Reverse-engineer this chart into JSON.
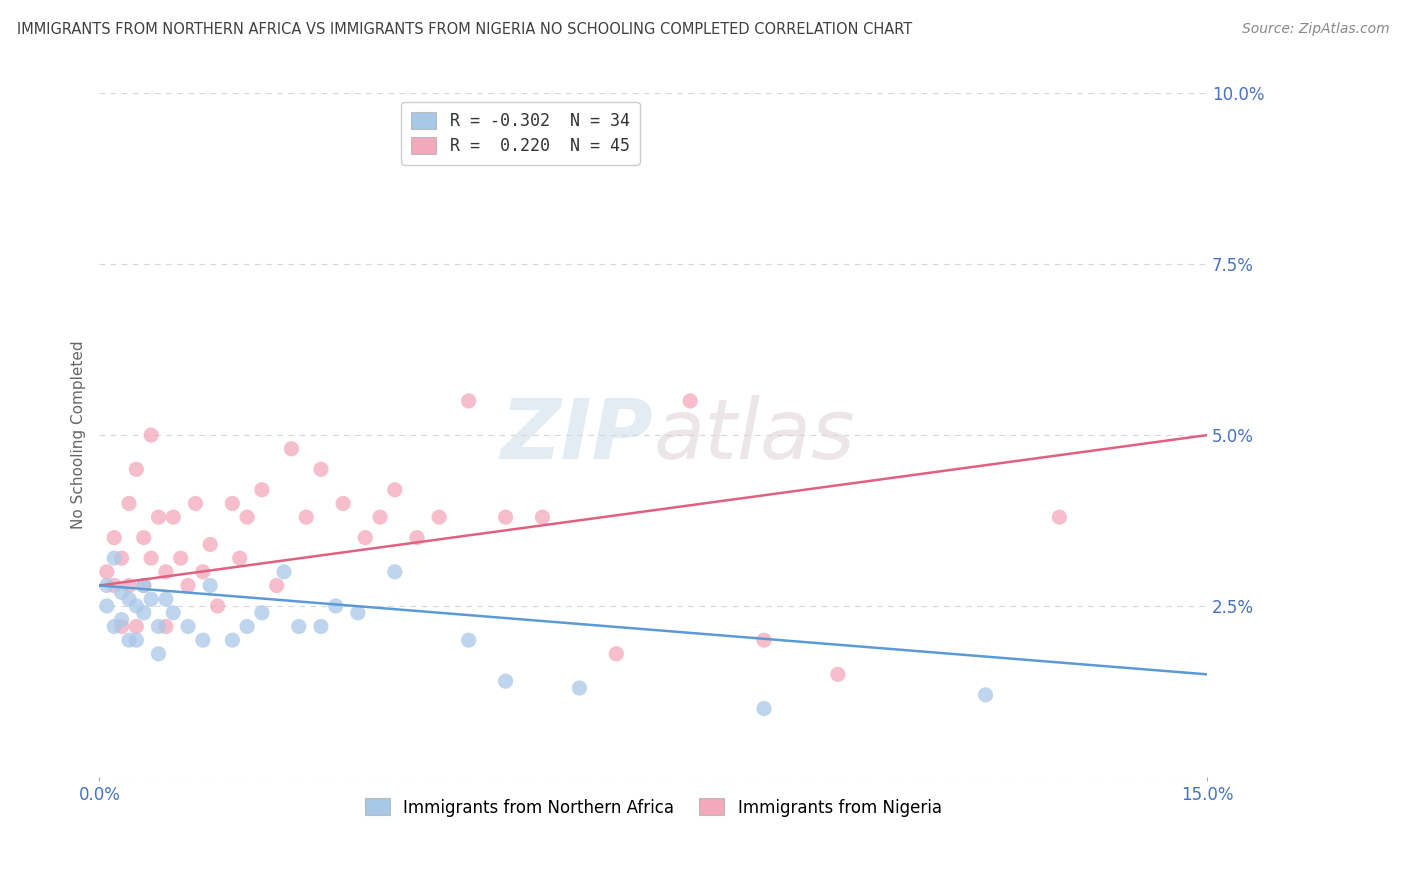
{
  "title": "IMMIGRANTS FROM NORTHERN AFRICA VS IMMIGRANTS FROM NIGERIA NO SCHOOLING COMPLETED CORRELATION CHART",
  "source": "Source: ZipAtlas.com",
  "ylabel": "No Schooling Completed",
  "xlim": [
    0.0,
    0.15
  ],
  "ylim": [
    0.0,
    0.1
  ],
  "yticks": [
    0.0,
    0.025,
    0.05,
    0.075,
    0.1
  ],
  "ytick_labels": [
    "",
    "2.5%",
    "5.0%",
    "7.5%",
    "10.0%"
  ],
  "legend_blue_label": "R = -0.302  N = 34",
  "legend_pink_label": "R =  0.220  N = 45",
  "legend1_bottom": "Immigrants from Northern Africa",
  "legend2_bottom": "Immigrants from Nigeria",
  "blue_color": "#a8c8e8",
  "pink_color": "#f4a8bc",
  "blue_line_color": "#5b9bd5",
  "pink_line_color": "#e06080",
  "blue_line_x": [
    0.0,
    0.15
  ],
  "blue_line_y": [
    0.028,
    0.015
  ],
  "pink_line_x": [
    0.0,
    0.15
  ],
  "pink_line_y": [
    0.028,
    0.05
  ],
  "blue_scatter_x": [
    0.001,
    0.001,
    0.002,
    0.002,
    0.003,
    0.003,
    0.004,
    0.004,
    0.005,
    0.005,
    0.006,
    0.006,
    0.007,
    0.008,
    0.008,
    0.009,
    0.01,
    0.012,
    0.014,
    0.015,
    0.018,
    0.02,
    0.022,
    0.025,
    0.027,
    0.03,
    0.032,
    0.035,
    0.04,
    0.05,
    0.055,
    0.065,
    0.09,
    0.12
  ],
  "blue_scatter_y": [
    0.028,
    0.025,
    0.032,
    0.022,
    0.027,
    0.023,
    0.026,
    0.02,
    0.025,
    0.02,
    0.028,
    0.024,
    0.026,
    0.022,
    0.018,
    0.026,
    0.024,
    0.022,
    0.02,
    0.028,
    0.02,
    0.022,
    0.024,
    0.03,
    0.022,
    0.022,
    0.025,
    0.024,
    0.03,
    0.02,
    0.014,
    0.013,
    0.01,
    0.012
  ],
  "pink_scatter_x": [
    0.001,
    0.002,
    0.002,
    0.003,
    0.003,
    0.004,
    0.004,
    0.005,
    0.005,
    0.006,
    0.006,
    0.007,
    0.007,
    0.008,
    0.009,
    0.009,
    0.01,
    0.011,
    0.012,
    0.013,
    0.014,
    0.015,
    0.016,
    0.018,
    0.019,
    0.02,
    0.022,
    0.024,
    0.026,
    0.028,
    0.03,
    0.033,
    0.036,
    0.038,
    0.04,
    0.043,
    0.046,
    0.05,
    0.055,
    0.06,
    0.07,
    0.08,
    0.09,
    0.1,
    0.13
  ],
  "pink_scatter_y": [
    0.03,
    0.028,
    0.035,
    0.032,
    0.022,
    0.04,
    0.028,
    0.045,
    0.022,
    0.035,
    0.028,
    0.05,
    0.032,
    0.038,
    0.03,
    0.022,
    0.038,
    0.032,
    0.028,
    0.04,
    0.03,
    0.034,
    0.025,
    0.04,
    0.032,
    0.038,
    0.042,
    0.028,
    0.048,
    0.038,
    0.045,
    0.04,
    0.035,
    0.038,
    0.042,
    0.035,
    0.038,
    0.055,
    0.038,
    0.038,
    0.018,
    0.055,
    0.02,
    0.015,
    0.038
  ],
  "watermark_zip": "ZIP",
  "watermark_atlas": "atlas",
  "background_color": "#ffffff",
  "grid_color": "#cccccc",
  "title_color": "#404040",
  "axis_label_color": "#4472c4",
  "legend_R_color": "#4472c4"
}
